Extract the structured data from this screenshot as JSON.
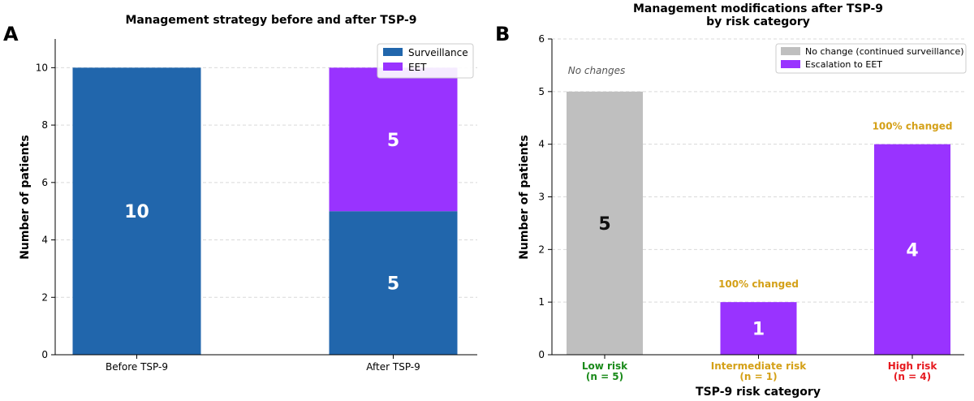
{
  "chart_data": [
    {
      "type": "bar",
      "panel_label": "A",
      "title": "Management strategy before and after TSP-9",
      "ylabel": "Number of patients",
      "xlabel": "",
      "ylim": [
        0,
        11
      ],
      "yticks": [
        0,
        2,
        4,
        6,
        8,
        10
      ],
      "grid": "y-dashed",
      "legend": "top-right",
      "stacked": true,
      "categories": [
        "Before TSP-9",
        "After TSP-9"
      ],
      "series": [
        {
          "name": "Surveillance",
          "values": [
            10,
            5
          ],
          "labels": [
            "10",
            "5"
          ],
          "color": "#2166ac"
        },
        {
          "name": "EET",
          "values": [
            0,
            5
          ],
          "labels": [
            "",
            "5"
          ],
          "color": "#9933ff"
        }
      ]
    },
    {
      "type": "bar",
      "panel_label": "B",
      "title_lines": [
        "Management modifications after TSP-9",
        "by risk category"
      ],
      "ylabel": "Number of patients",
      "xlabel": "TSP-9 risk category",
      "ylim": [
        0,
        6
      ],
      "yticks": [
        0,
        1,
        2,
        3,
        4,
        5,
        6
      ],
      "grid": "y-dashed",
      "legend": "top-right",
      "legend_entries": [
        {
          "name": "No change (continued surveillance)",
          "color": "#bfbfbf"
        },
        {
          "name": "Escalation to EET",
          "color": "#9933ff"
        }
      ],
      "categories": [
        {
          "line1": "Low risk",
          "line2": "(n = 5)",
          "color": "#1a8a1a"
        },
        {
          "line1": "Intermediate risk",
          "line2": "(n = 1)",
          "color": "#d4a017"
        },
        {
          "line1": "High risk",
          "line2": "(n = 4)",
          "color": "#e6191f"
        }
      ],
      "bars": [
        {
          "value": 5,
          "label": "5",
          "color": "#bfbfbf",
          "label_color": "#111111"
        },
        {
          "value": 1,
          "label": "1",
          "color": "#9933ff",
          "label_color": "#ffffff"
        },
        {
          "value": 4,
          "label": "4",
          "color": "#9933ff",
          "label_color": "#ffffff"
        }
      ],
      "annotations": [
        {
          "text": "No changes",
          "color": "#555555",
          "italic": true
        },
        {
          "text": "100% changed",
          "color": "#d4a017",
          "italic": false
        },
        {
          "text": "100% changed",
          "color": "#d4a017",
          "italic": false
        }
      ]
    }
  ]
}
